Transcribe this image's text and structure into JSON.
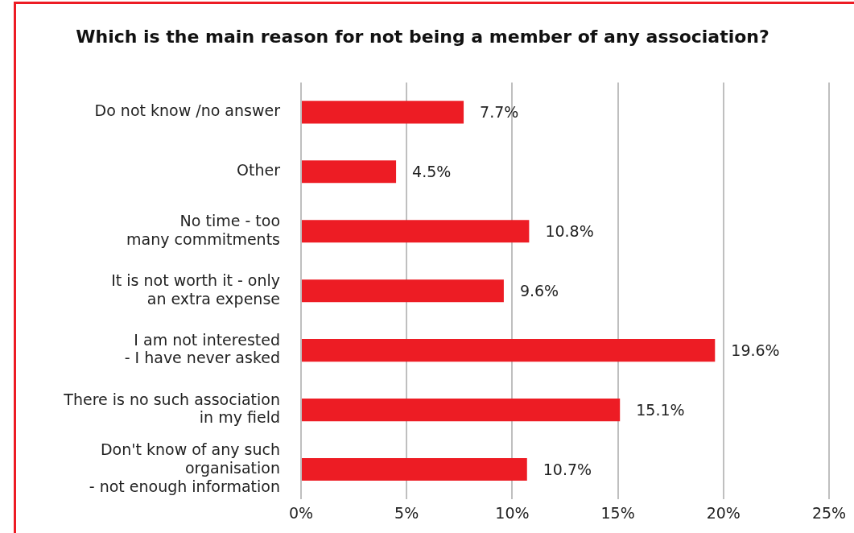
{
  "chart_data": {
    "type": "bar",
    "orientation": "horizontal",
    "title": "Which is the main reason for not being a member of any association?",
    "categories": [
      "Do not know /no answer",
      "Other",
      "No time - too\nmany commitments",
      "It is not worth it - only\nan extra expense",
      "I am not interested\n- I have never asked",
      "There is no such association\nin my field",
      "Don't know of any such\norganisation\n- not enough information"
    ],
    "values": [
      7.7,
      4.5,
      10.8,
      9.6,
      19.6,
      15.1,
      10.7
    ],
    "value_labels": [
      "7.7%",
      "4.5%",
      "10.8%",
      "9.6%",
      "19.6%",
      "15.1%",
      "10.7%"
    ],
    "color": "#ed1c24",
    "xlim": [
      0,
      25
    ],
    "xticks": [
      {
        "value": 0,
        "label": "0%"
      },
      {
        "value": 5,
        "label": "5%"
      },
      {
        "value": 10,
        "label": "10%"
      },
      {
        "value": 15,
        "label": "15%"
      },
      {
        "value": 20,
        "label": "20%"
      },
      {
        "value": 25,
        "label": "25%"
      }
    ],
    "grid": "x",
    "legend": false
  }
}
